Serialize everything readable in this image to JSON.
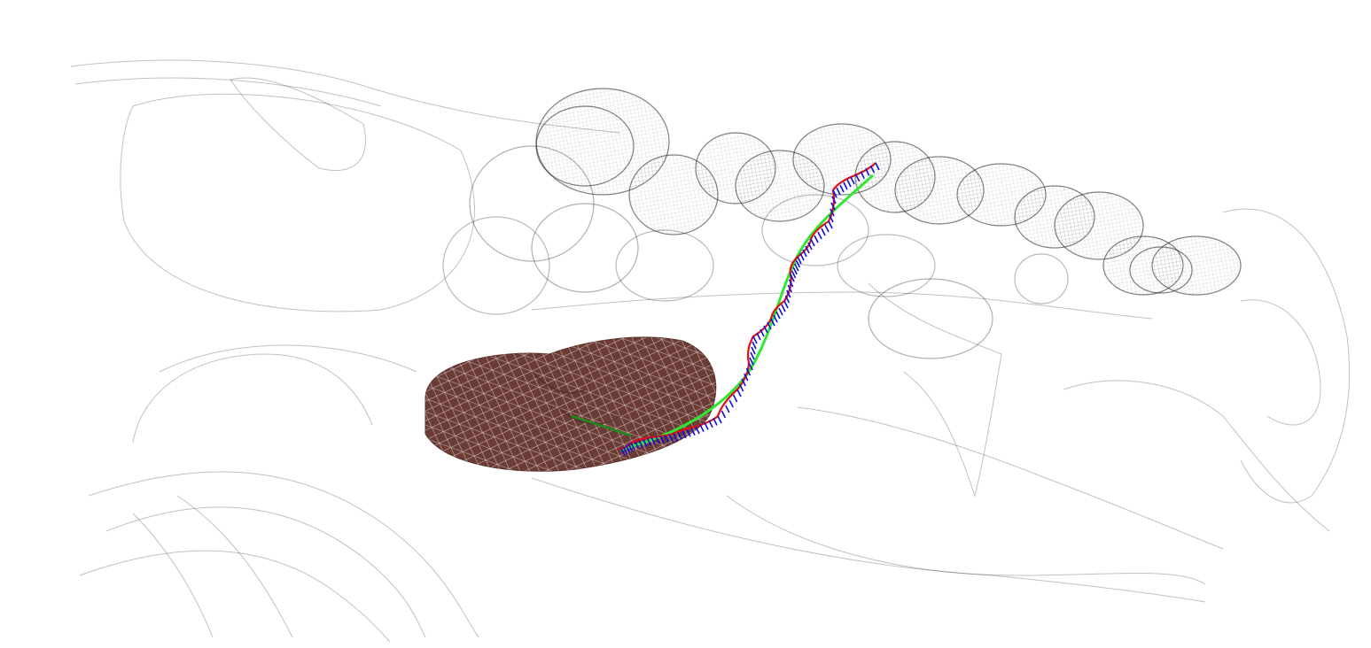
{
  "scene": {
    "kind": "3d-wireframe-render",
    "background": "#ffffff",
    "colors": {
      "wireframe": "#202020",
      "organ_fill": "#6b3b35",
      "organ_mesh": "#f2e6e4",
      "path_main": "#2ee82e",
      "path_trace": "#e01010",
      "vectors": "#1010d8",
      "entry_segment": "#1f8a1f"
    }
  }
}
